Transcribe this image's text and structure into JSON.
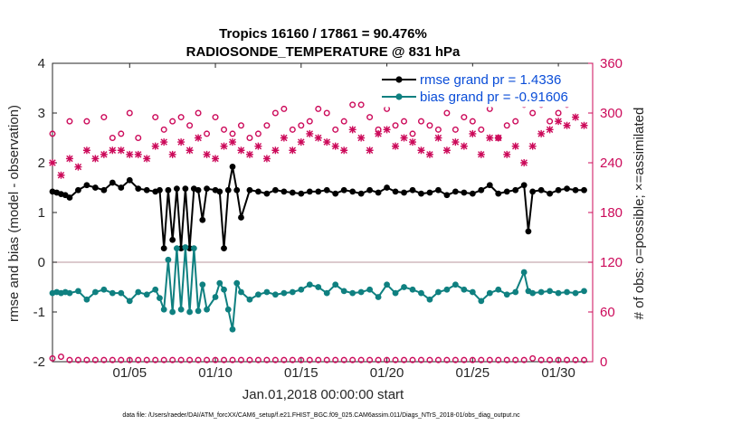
{
  "chart_data": {
    "type": "line",
    "title_line1": "Tropics 16160 / 17861 = 90.476%",
    "title_line2": "RADIOSONDE_TEMPERATURE @ 831 hPa",
    "xlabel": "Jan.01,2018 00:00:00 start",
    "ylabel_left": "rmse and bias (model - observation)",
    "ylabel_right": "# of obs: o=possible; ×=assimilated",
    "ylim_left": [
      -2,
      4
    ],
    "ylim_right": [
      0,
      360
    ],
    "xlim": [
      0.5,
      32.0
    ],
    "xticks": [
      5,
      10,
      15,
      20,
      25,
      30
    ],
    "xtick_labels": [
      "01/05",
      "01/10",
      "01/15",
      "01/20",
      "01/25",
      "01/30"
    ],
    "yticks_left": [
      -2,
      -1,
      0,
      1,
      2,
      3,
      4
    ],
    "yticks_left_labels": [
      "-2",
      "-1",
      "0",
      "1",
      "2",
      "3",
      "4"
    ],
    "yticks_right": [
      0,
      60,
      120,
      180,
      240,
      300,
      360
    ],
    "yticks_right_labels": [
      "0",
      "60",
      "120",
      "180",
      "240",
      "300",
      "360"
    ],
    "legend": {
      "position": "top-right",
      "rmse_label": "rmse grand pr = 1.4336",
      "bias_label": "bias grand pr = -0.91606"
    },
    "footer": "data file: /Users/raeder/DAI/ATM_forcXX/CAM6_setup/f.e21.FHIST_BGC.f09_025.CAM6assim.011/Diags_NTrS_2018-01/obs_diag_output.nc",
    "colors": {
      "rmse": "#000000",
      "bias": "#0f8080",
      "obs": "#cc0a5a",
      "zero_line": "#c8aab0",
      "legend_text": "#0a4dd8"
    },
    "series": [
      {
        "name": "rmse",
        "color": "#000000",
        "x": [
          0.5,
          0.75,
          1.0,
          1.25,
          1.5,
          2.0,
          2.5,
          3.0,
          3.5,
          4.0,
          4.5,
          5.0,
          5.5,
          6.0,
          6.5,
          6.75,
          7.0,
          7.25,
          7.5,
          7.75,
          8.0,
          8.25,
          8.5,
          8.75,
          9.0,
          9.25,
          9.5,
          10.0,
          10.25,
          10.5,
          10.75,
          11.0,
          11.25,
          11.5,
          12.0,
          12.5,
          13.0,
          13.5,
          14.0,
          14.5,
          15.0,
          15.5,
          16.0,
          16.5,
          17.0,
          17.5,
          18.0,
          18.5,
          19.0,
          19.5,
          20.0,
          20.5,
          21.0,
          21.5,
          22.0,
          22.5,
          23.0,
          23.5,
          24.0,
          24.5,
          25.0,
          25.5,
          26.0,
          26.5,
          27.0,
          27.5,
          28.0,
          28.25,
          28.5,
          29.0,
          29.5,
          30.0,
          30.5,
          31.0,
          31.5
        ],
        "values": [
          1.42,
          1.4,
          1.37,
          1.35,
          1.3,
          1.45,
          1.55,
          1.5,
          1.45,
          1.6,
          1.5,
          1.65,
          1.48,
          1.45,
          1.42,
          1.45,
          0.28,
          1.45,
          0.45,
          1.48,
          0.28,
          1.48,
          0.28,
          1.48,
          1.45,
          0.85,
          1.48,
          1.45,
          1.42,
          0.28,
          1.45,
          1.92,
          1.45,
          0.9,
          1.45,
          1.42,
          1.38,
          1.45,
          1.42,
          1.4,
          1.38,
          1.42,
          1.42,
          1.45,
          1.38,
          1.45,
          1.42,
          1.38,
          1.45,
          1.4,
          1.5,
          1.42,
          1.4,
          1.45,
          1.38,
          1.4,
          1.45,
          1.35,
          1.42,
          1.4,
          1.38,
          1.45,
          1.55,
          1.38,
          1.42,
          1.45,
          1.55,
          0.62,
          1.42,
          1.45,
          1.38,
          1.45,
          1.48,
          1.45,
          1.45
        ]
      },
      {
        "name": "bias",
        "color": "#0f8080",
        "x": [
          0.5,
          0.75,
          1.0,
          1.25,
          1.5,
          2.0,
          2.5,
          3.0,
          3.5,
          4.0,
          4.5,
          5.0,
          5.5,
          6.0,
          6.5,
          6.75,
          7.0,
          7.25,
          7.5,
          7.75,
          8.0,
          8.25,
          8.5,
          8.75,
          9.0,
          9.25,
          9.5,
          10.0,
          10.25,
          10.5,
          10.75,
          11.0,
          11.25,
          11.5,
          12.0,
          12.5,
          13.0,
          13.5,
          14.0,
          14.5,
          15.0,
          15.5,
          16.0,
          16.5,
          17.0,
          17.5,
          18.0,
          18.5,
          19.0,
          19.5,
          20.0,
          20.5,
          21.0,
          21.5,
          22.0,
          22.5,
          23.0,
          23.5,
          24.0,
          24.5,
          25.0,
          25.5,
          26.0,
          26.5,
          27.0,
          27.5,
          28.0,
          28.25,
          28.5,
          29.0,
          29.5,
          30.0,
          30.5,
          31.0,
          31.5
        ],
        "values": [
          -0.62,
          -0.6,
          -0.62,
          -0.6,
          -0.62,
          -0.58,
          -0.75,
          -0.6,
          -0.55,
          -0.62,
          -0.62,
          -0.78,
          -0.6,
          -0.65,
          -0.55,
          -0.72,
          -0.95,
          0.05,
          -1.0,
          0.28,
          -0.95,
          0.3,
          -1.0,
          0.28,
          -0.98,
          -0.45,
          -0.95,
          -0.7,
          -0.42,
          -0.55,
          -0.95,
          -1.35,
          -0.42,
          -0.6,
          -0.75,
          -0.65,
          -0.6,
          -0.65,
          -0.62,
          -0.6,
          -0.55,
          -0.45,
          -0.5,
          -0.62,
          -0.45,
          -0.58,
          -0.62,
          -0.6,
          -0.55,
          -0.7,
          -0.45,
          -0.62,
          -0.5,
          -0.55,
          -0.62,
          -0.75,
          -0.6,
          -0.55,
          -0.45,
          -0.55,
          -0.6,
          -0.78,
          -0.62,
          -0.55,
          -0.65,
          -0.6,
          -0.2,
          -0.58,
          -0.62,
          -0.6,
          -0.58,
          -0.62,
          -0.6,
          -0.62,
          -0.58
        ]
      },
      {
        "name": "obs_possible",
        "color": "#cc0a5a",
        "marker": "circle",
        "x": [
          0.5,
          1.5,
          2.5,
          3.5,
          4.0,
          4.5,
          5.0,
          5.5,
          6.5,
          7.0,
          7.5,
          8.0,
          8.5,
          9.0,
          9.5,
          10.0,
          10.5,
          11.0,
          11.5,
          12.0,
          12.5,
          13.0,
          13.5,
          14.0,
          14.5,
          15.0,
          15.5,
          16.0,
          16.5,
          17.0,
          17.5,
          18.0,
          18.5,
          19.0,
          19.5,
          20.0,
          20.5,
          21.0,
          21.5,
          22.0,
          22.5,
          23.0,
          23.5,
          24.0,
          24.5,
          25.0,
          25.5,
          26.0,
          26.5,
          27.0,
          27.5,
          28.0,
          28.5,
          29.0,
          29.5,
          30.0,
          30.5,
          31.0,
          31.5
        ],
        "values": [
          275,
          290,
          290,
          295,
          270,
          275,
          300,
          270,
          295,
          280,
          290,
          295,
          285,
          300,
          275,
          295,
          280,
          275,
          285,
          270,
          275,
          285,
          300,
          305,
          280,
          285,
          290,
          305,
          300,
          280,
          290,
          310,
          310,
          295,
          280,
          305,
          285,
          290,
          275,
          290,
          285,
          280,
          300,
          280,
          295,
          290,
          280,
          305,
          270,
          285,
          290,
          310,
          300,
          310,
          290,
          300,
          310,
          315,
          320
        ]
      },
      {
        "name": "obs_assimilated",
        "color": "#cc0a5a",
        "marker": "x",
        "x": [
          0.5,
          1.0,
          1.5,
          2.0,
          2.5,
          3.0,
          3.5,
          4.0,
          4.5,
          5.0,
          5.5,
          6.0,
          6.5,
          7.0,
          7.5,
          8.0,
          8.5,
          9.0,
          9.5,
          10.0,
          10.5,
          11.0,
          11.5,
          12.0,
          12.5,
          13.0,
          13.5,
          14.0,
          14.5,
          15.0,
          15.5,
          16.0,
          16.5,
          17.0,
          17.5,
          18.0,
          18.5,
          19.0,
          19.5,
          20.0,
          20.5,
          21.0,
          21.5,
          22.0,
          22.5,
          23.0,
          23.5,
          24.0,
          24.5,
          25.0,
          25.5,
          26.0,
          26.5,
          27.0,
          27.5,
          28.0,
          28.5,
          29.0,
          29.5,
          30.0,
          30.5,
          31.0,
          31.5
        ],
        "values": [
          240,
          225,
          245,
          235,
          255,
          245,
          250,
          255,
          255,
          250,
          250,
          245,
          260,
          265,
          250,
          265,
          255,
          270,
          250,
          245,
          260,
          265,
          255,
          250,
          260,
          245,
          255,
          270,
          255,
          265,
          275,
          270,
          265,
          260,
          255,
          280,
          270,
          255,
          275,
          280,
          260,
          270,
          265,
          255,
          250,
          270,
          255,
          265,
          260,
          275,
          250,
          270,
          270,
          250,
          260,
          240,
          260,
          275,
          280,
          290,
          285,
          295,
          285
        ]
      },
      {
        "name": "obs_possible_bottom",
        "color": "#cc0a5a",
        "marker": "circle",
        "x": [
          0.5,
          1.0,
          1.5,
          2.0,
          2.5,
          3.0,
          3.5,
          4.0,
          4.5,
          5.0,
          5.5,
          6.0,
          6.5,
          7.0,
          7.5,
          8.0,
          8.5,
          9.0,
          9.5,
          10.0,
          10.5,
          11.0,
          11.5,
          12.0,
          12.5,
          13.0,
          13.5,
          14.0,
          14.5,
          15.0,
          15.5,
          16.0,
          16.5,
          17.0,
          17.5,
          18.0,
          18.5,
          19.0,
          19.5,
          20.0,
          20.5,
          21.0,
          21.5,
          22.0,
          22.5,
          23.0,
          23.5,
          24.0,
          24.5,
          25.0,
          25.5,
          26.0,
          26.5,
          27.0,
          27.5,
          28.0,
          28.5,
          29.0,
          29.5,
          30.0,
          30.5,
          31.0,
          31.5
        ],
        "values": [
          4,
          6,
          2,
          2,
          2,
          2,
          2,
          2,
          2,
          2,
          2,
          2,
          2,
          2,
          2,
          2,
          2,
          2,
          2,
          2,
          2,
          2,
          2,
          2,
          2,
          2,
          2,
          2,
          2,
          2,
          2,
          2,
          2,
          2,
          2,
          2,
          2,
          2,
          2,
          2,
          2,
          2,
          2,
          2,
          2,
          2,
          2,
          2,
          2,
          2,
          2,
          2,
          2,
          2,
          2,
          2,
          4,
          2,
          2,
          2,
          2,
          2,
          2
        ]
      }
    ]
  }
}
